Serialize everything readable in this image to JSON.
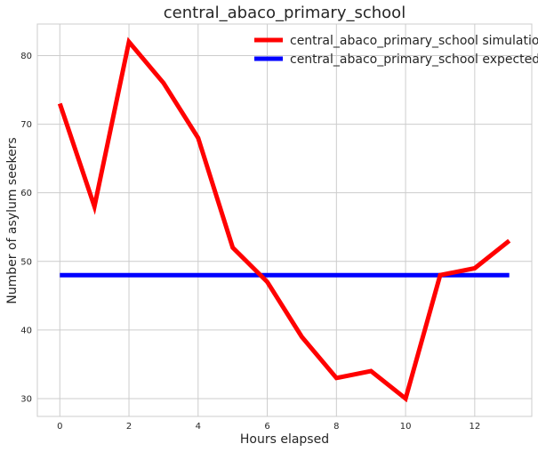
{
  "chart_data": {
    "type": "line",
    "title": "central_abaco_primary_school",
    "xlabel": "Hours elapsed",
    "ylabel": "Number of asylum seekers",
    "x": [
      0,
      1,
      2,
      3,
      4,
      5,
      6,
      7,
      8,
      9,
      10,
      11,
      12,
      13
    ],
    "xlim": [
      -0.65,
      13.65
    ],
    "ylim": [
      27.4,
      84.6
    ],
    "xticks": [
      0,
      2,
      4,
      6,
      8,
      10,
      12
    ],
    "yticks": [
      30,
      40,
      50,
      60,
      70,
      80
    ],
    "grid": true,
    "legend_position": "top-right",
    "series": [
      {
        "name": "central_abaco_primary_school simulation",
        "color": "#ff0000",
        "values": [
          73,
          58,
          82,
          76,
          68,
          52,
          47,
          39,
          33,
          34,
          30,
          48,
          49,
          53
        ]
      },
      {
        "name": "central_abaco_primary_school expected",
        "color": "#0000ff",
        "values": [
          48,
          48,
          48,
          48,
          48,
          48,
          48,
          48,
          48,
          48,
          48,
          48,
          48,
          48
        ]
      }
    ]
  }
}
